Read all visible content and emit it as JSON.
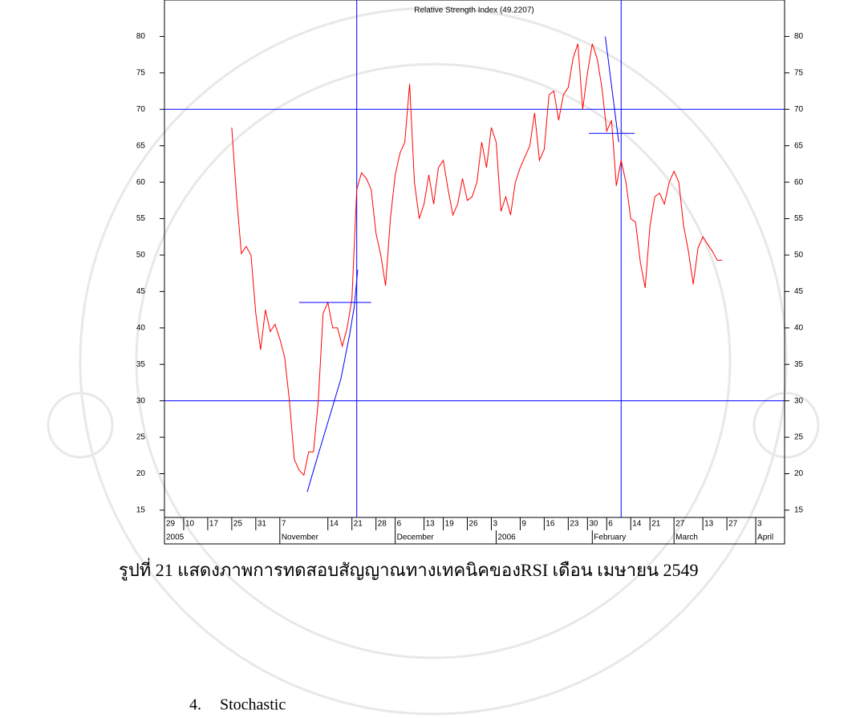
{
  "chart_data": {
    "type": "line",
    "title": "Relative Strength Index (49.2207)",
    "x": [
      14,
      15,
      16,
      17,
      18,
      19,
      20,
      21,
      22,
      23,
      24,
      25,
      26,
      27,
      28,
      29,
      30,
      31,
      32,
      33,
      34,
      35,
      36,
      37,
      38,
      39,
      40,
      41,
      42,
      43,
      44,
      45,
      46,
      47,
      48,
      49,
      50,
      51,
      52,
      53,
      54,
      55,
      56,
      57,
      58,
      59,
      60,
      61,
      62,
      63,
      64,
      65,
      66,
      67,
      68,
      69,
      70,
      71,
      72,
      73,
      74,
      75,
      76,
      77,
      78,
      79,
      80,
      81,
      82,
      83,
      84,
      85,
      86,
      87,
      88,
      89,
      90,
      91,
      92,
      93,
      94,
      95,
      96,
      97,
      98,
      99,
      100,
      101,
      102,
      103,
      104,
      105,
      106,
      107,
      108,
      109,
      110,
      111,
      112,
      113,
      114,
      115,
      116
    ],
    "series": [
      {
        "name": "RSI",
        "color": "#ff0000",
        "values": [
          67.5,
          58,
          50.2,
          51.2,
          50,
          42,
          37,
          42.5,
          39.5,
          40.5,
          38.5,
          36,
          30,
          22,
          20.5,
          19.8,
          23,
          23,
          30,
          42,
          43.5,
          40,
          40,
          37.5,
          40,
          44,
          59,
          61.3,
          60.5,
          59,
          53,
          50,
          45.8,
          55,
          61,
          64,
          65.5,
          73.5,
          60,
          55,
          57,
          61,
          57,
          62,
          63,
          59,
          55.5,
          57,
          60.5,
          57.5,
          58,
          60,
          65.5,
          62,
          67.5,
          65.5,
          56,
          58,
          55.5,
          60,
          62,
          63.5,
          65,
          69.5,
          63,
          64.5,
          72,
          72.5,
          68.5,
          72,
          73,
          77,
          79,
          70,
          75,
          79,
          77,
          73,
          67,
          68.5,
          59.5,
          63,
          60,
          55,
          54.5,
          49,
          45.5,
          54,
          58,
          58.5,
          57,
          60,
          61.5,
          60,
          54,
          50.5,
          46,
          51,
          52.5,
          51.5,
          50.5,
          49.3,
          49.3
        ]
      }
    ],
    "overlay_color": "#0000ff",
    "overlays": [
      {
        "x": [
          29.7,
          31.7,
          34.2,
          36.7,
          38.5,
          39.5,
          40.2
        ],
        "values": [
          17.5,
          22,
          27.5,
          33,
          39,
          43,
          48
        ]
      },
      {
        "x": [
          91.7,
          94.5
        ],
        "values": [
          80,
          65.5
        ]
      },
      {
        "x": [
          28,
          43
        ],
        "values": [
          43.5,
          43.5
        ]
      },
      {
        "x": [
          88.3,
          97.8
        ],
        "values": [
          66.7,
          66.7
        ]
      }
    ],
    "hlines": [
      70,
      30
    ],
    "vlines": [
      40,
      95
    ],
    "xlim": [
      0,
      129
    ],
    "ylim": [
      14,
      85
    ],
    "yticks": [
      15,
      20,
      25,
      30,
      35,
      40,
      45,
      50,
      55,
      60,
      65,
      70,
      75,
      80
    ],
    "xticks": [
      {
        "value": 0,
        "label": "29"
      },
      {
        "value": 4,
        "label": "10"
      },
      {
        "value": 9,
        "label": "17"
      },
      {
        "value": 14,
        "label": "25"
      },
      {
        "value": 19,
        "label": "31"
      },
      {
        "value": 24,
        "label": "7"
      },
      {
        "value": 34,
        "label": "14"
      },
      {
        "value": 39,
        "label": "21"
      },
      {
        "value": 44,
        "label": "28"
      },
      {
        "value": 48,
        "label": "6"
      },
      {
        "value": 54,
        "label": "13"
      },
      {
        "value": 58,
        "label": "19"
      },
      {
        "value": 63,
        "label": "26"
      },
      {
        "value": 68,
        "label": "3"
      },
      {
        "value": 74,
        "label": "9"
      },
      {
        "value": 79,
        "label": "16"
      },
      {
        "value": 84,
        "label": "23"
      },
      {
        "value": 88,
        "label": "30"
      },
      {
        "value": 92,
        "label": "6"
      },
      {
        "value": 97,
        "label": "14"
      },
      {
        "value": 101,
        "label": "21"
      },
      {
        "value": 106,
        "label": "27"
      },
      {
        "value": 112,
        "label": "13"
      },
      {
        "value": 117,
        "label": "27"
      },
      {
        "value": 123,
        "label": "3"
      }
    ],
    "month_ticks": [
      {
        "value": 0,
        "label": "2005"
      },
      {
        "value": 24,
        "label": "November"
      },
      {
        "value": 48,
        "label": "December"
      },
      {
        "value": 69,
        "label": "2006"
      },
      {
        "value": 89,
        "label": "February"
      },
      {
        "value": 106,
        "label": "March"
      },
      {
        "value": 123,
        "label": "April"
      }
    ]
  },
  "caption": "รูปที่ 21 แสดงภาพการทดสอบสัญญาณทางเทคนิคของRSI เดือน เมษายน 2549",
  "section_heading": {
    "number": "4.",
    "title": "Stochastic"
  }
}
